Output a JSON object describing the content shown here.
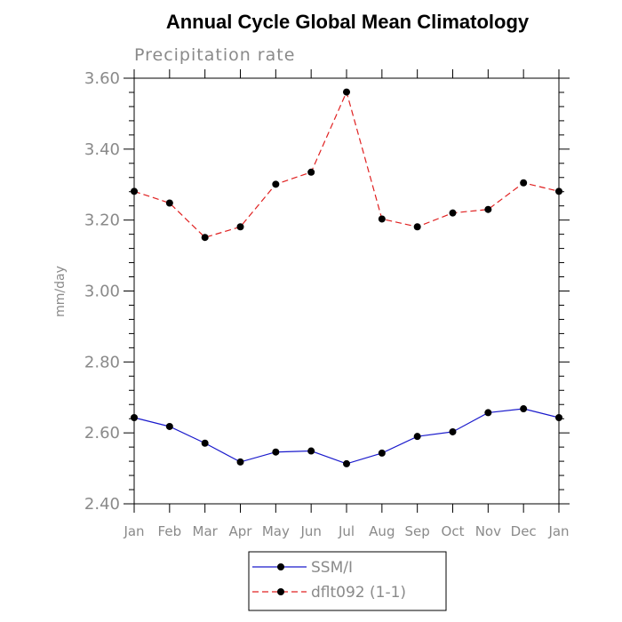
{
  "chart_data": {
    "type": "line",
    "title": "Annual Cycle Global Mean Climatology",
    "subtitle": "Precipitation rate",
    "xlabel": "",
    "ylabel": "mm/day",
    "categories": [
      "Jan",
      "Feb",
      "Mar",
      "Apr",
      "May",
      "Jun",
      "Jul",
      "Aug",
      "Sep",
      "Oct",
      "Nov",
      "Dec",
      "Jan"
    ],
    "ylim": [
      2.4,
      3.6
    ],
    "yticks": [
      2.4,
      2.6,
      2.8,
      3.0,
      3.2,
      3.4,
      3.6
    ],
    "ytick_labels": [
      "2.40",
      "2.60",
      "2.80",
      "3.00",
      "3.20",
      "3.40",
      "3.60"
    ],
    "grid": false,
    "legend_position": "bottom-center",
    "series": [
      {
        "name": "SSM/I",
        "color": "#1a1acc",
        "dash": "solid",
        "values": [
          2.643,
          2.618,
          2.571,
          2.518,
          2.546,
          2.549,
          2.513,
          2.543,
          2.59,
          2.603,
          2.657,
          2.668,
          2.643
        ]
      },
      {
        "name": "dflt092 (1-1)",
        "color": "#e02020",
        "dash": "dashed",
        "values": [
          3.281,
          3.248,
          3.151,
          3.181,
          3.301,
          3.335,
          3.561,
          3.203,
          3.181,
          3.22,
          3.23,
          3.305,
          3.281
        ]
      }
    ]
  }
}
